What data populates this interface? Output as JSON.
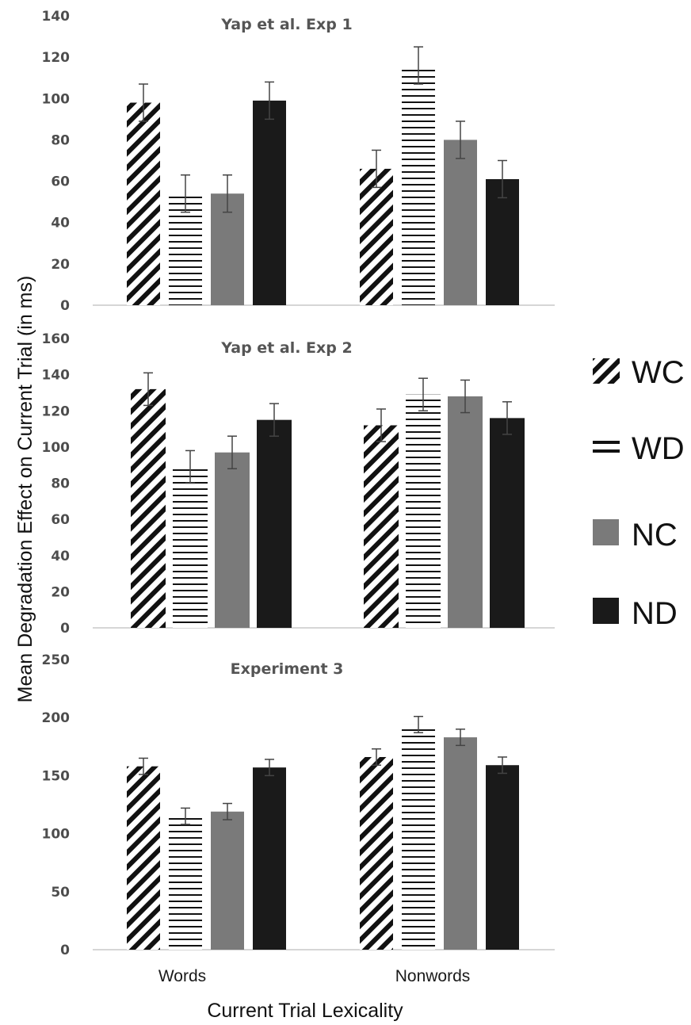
{
  "chart_data": {
    "type": "bar",
    "ylabel": "Mean Degradation Effect on Current Trial (in ms)",
    "xlabel": "Current Trial Lexicality",
    "categories": [
      "Words",
      "Nonwords"
    ],
    "legend": {
      "placement": "right",
      "entries": [
        {
          "label": "WC",
          "pattern": "diagonal-stripes",
          "color": "#111111"
        },
        {
          "label": "WD",
          "pattern": "horizontal-stripes",
          "color": "#111111"
        },
        {
          "label": "NC",
          "pattern": "solid",
          "color": "#7a7a7a"
        },
        {
          "label": "ND",
          "pattern": "solid",
          "color": "#1a1a1a"
        }
      ]
    },
    "panels": [
      {
        "title": "Yap et al. Exp 1",
        "ylim": [
          0,
          140
        ],
        "yticks": [
          0,
          20,
          40,
          60,
          80,
          100,
          120,
          140
        ],
        "series": [
          {
            "name": "WC",
            "values": [
              98,
              66
            ],
            "errors": [
              9,
              9
            ]
          },
          {
            "name": "WD",
            "values": [
              54,
              116
            ],
            "errors": [
              9,
              9
            ]
          },
          {
            "name": "NC",
            "values": [
              54,
              80
            ],
            "errors": [
              9,
              9
            ]
          },
          {
            "name": "ND",
            "values": [
              99,
              61
            ],
            "errors": [
              9,
              9
            ]
          }
        ]
      },
      {
        "title": "Yap et al. Exp 2",
        "ylim": [
          0,
          160
        ],
        "yticks": [
          0,
          20,
          40,
          60,
          80,
          100,
          120,
          140,
          160
        ],
        "series": [
          {
            "name": "WC",
            "values": [
              132,
              112
            ],
            "errors": [
              9,
              9
            ]
          },
          {
            "name": "WD",
            "values": [
              89,
              129
            ],
            "errors": [
              9,
              9
            ]
          },
          {
            "name": "NC",
            "values": [
              97,
              128
            ],
            "errors": [
              9,
              9
            ]
          },
          {
            "name": "ND",
            "values": [
              115,
              116
            ],
            "errors": [
              9,
              9
            ]
          }
        ]
      },
      {
        "title": "Experiment 3",
        "ylim": [
          0,
          250
        ],
        "yticks": [
          0,
          50,
          100,
          150,
          200,
          250
        ],
        "series": [
          {
            "name": "WC",
            "values": [
              158,
              166
            ],
            "errors": [
              7,
              7
            ]
          },
          {
            "name": "WD",
            "values": [
              115,
              194
            ],
            "errors": [
              7,
              7
            ]
          },
          {
            "name": "NC",
            "values": [
              119,
              183
            ],
            "errors": [
              7,
              7
            ]
          },
          {
            "name": "ND",
            "values": [
              157,
              159
            ],
            "errors": [
              7,
              7
            ]
          }
        ]
      }
    ]
  }
}
